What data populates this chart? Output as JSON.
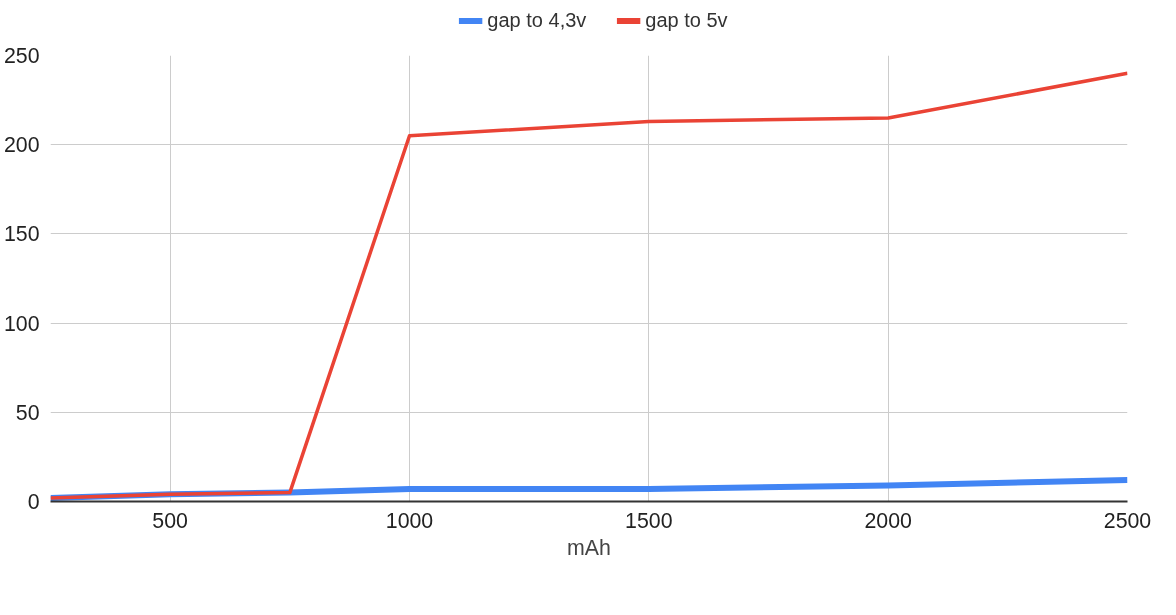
{
  "chart_data": {
    "type": "line",
    "xlabel": "mAh",
    "x": [
      250,
      500,
      750,
      1000,
      1500,
      2000,
      2500
    ],
    "series": [
      {
        "name": "gap to 4,3v",
        "color": "#4285f4",
        "values": [
          2,
          4,
          5,
          7,
          7,
          9,
          12
        ]
      },
      {
        "name": "gap to 5v",
        "color": "#ea4335",
        "values": [
          2,
          4,
          5,
          205,
          213,
          215,
          240
        ]
      }
    ],
    "xlim": [
      250,
      2500
    ],
    "xticks": [
      500,
      1000,
      1500,
      2000,
      2500
    ],
    "ylim": [
      0,
      250
    ],
    "yticks": [
      0,
      50,
      100,
      150,
      200,
      250
    ],
    "grid": true,
    "legend": "top",
    "marker": "none",
    "line_style": "solid"
  }
}
